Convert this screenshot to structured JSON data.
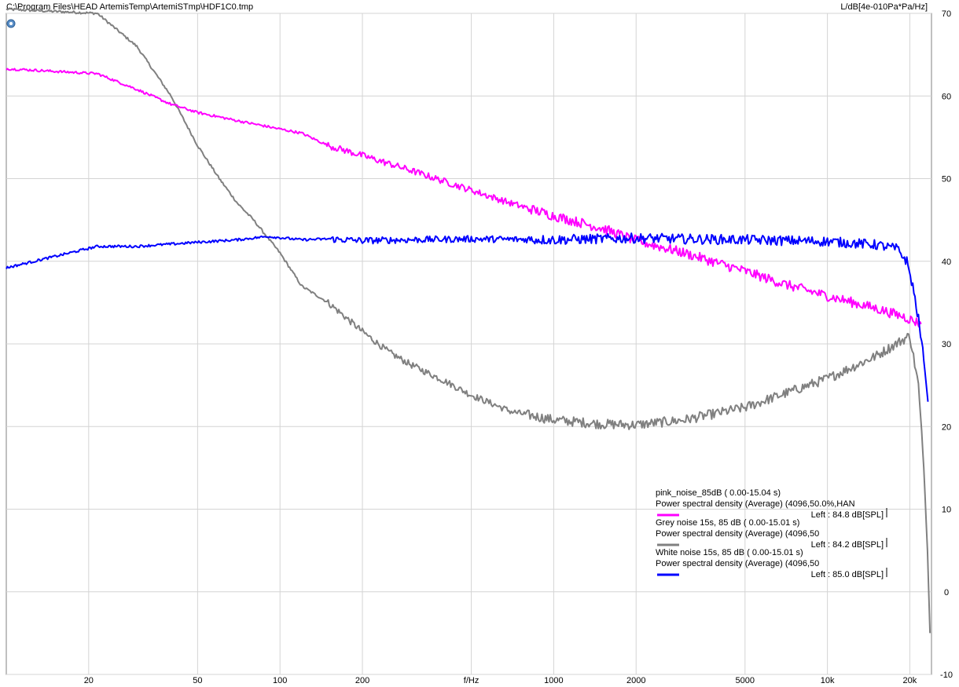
{
  "header": {
    "file_path": "C:\\Program Files\\HEAD ArtemisTemp\\ArtemiSTmp\\HDF1C0.tmp",
    "y_unit": "L/dB[4e-010Pa*Pa/Hz]"
  },
  "chart_data": {
    "type": "line",
    "title": "",
    "xlabel": "f/Hz",
    "ylabel": "L/dB[4e-010Pa*Pa/Hz]",
    "x_scale": "log",
    "xlim": [
      10,
      24000
    ],
    "ylim": [
      -10,
      70
    ],
    "grid": true,
    "legend_position": "bottom-right",
    "x_ticks": [
      {
        "value": 20,
        "label": "20"
      },
      {
        "value": 50,
        "label": "50"
      },
      {
        "value": 100,
        "label": "100"
      },
      {
        "value": 200,
        "label": "200"
      },
      {
        "value": 500,
        "label": "f/Hz"
      },
      {
        "value": 1000,
        "label": "1000"
      },
      {
        "value": 2000,
        "label": "2000"
      },
      {
        "value": 5000,
        "label": "5000"
      },
      {
        "value": 10000,
        "label": "10k"
      },
      {
        "value": 20000,
        "label": "20k"
      }
    ],
    "y_ticks": [
      {
        "value": 70,
        "label": "70"
      },
      {
        "value": 60,
        "label": "60"
      },
      {
        "value": 50,
        "label": "50"
      },
      {
        "value": 40,
        "label": "40"
      },
      {
        "value": 30,
        "label": "30"
      },
      {
        "value": 20,
        "label": "20"
      },
      {
        "value": 10,
        "label": "10"
      },
      {
        "value": 0,
        "label": "0"
      },
      {
        "value": -10,
        "label": "-10"
      }
    ],
    "series": [
      {
        "name": "pink_noise_85dB ( 0.00-15.04 s)",
        "description": "Power spectral density (Average) (4096,50.0%,HAN",
        "level": "Left : 84.8 dB[SPL]",
        "color": "#ff00ff",
        "x": [
          10,
          21.5,
          30,
          40,
          50,
          70,
          100,
          120,
          150,
          200,
          300,
          500,
          700,
          1000,
          1500,
          2000,
          3000,
          5000,
          7000,
          10000,
          15000,
          19000,
          22000
        ],
        "y": [
          63.3,
          62.7,
          60.8,
          59.0,
          58.0,
          57.0,
          56.0,
          55.5,
          54.0,
          52.8,
          51.0,
          48.6,
          47.0,
          45.5,
          44.0,
          42.5,
          41.0,
          38.8,
          37.2,
          35.8,
          34.3,
          33.3,
          32.4
        ]
      },
      {
        "name": "Grey noise 15s, 85 dB ( 0.00-15.01 s)",
        "description": "Power spectral density (Average) (4096,50",
        "level": "Left : 84.2 dB[SPL]",
        "color": "#808080",
        "x": [
          10,
          21.5,
          30,
          40,
          50,
          60,
          70,
          80,
          100,
          120,
          150,
          200,
          250,
          300,
          400,
          500,
          700,
          1000,
          1500,
          2000,
          3000,
          5000,
          7000,
          10000,
          15000,
          20000,
          21500,
          22500,
          23200,
          23700
        ],
        "y": [
          70.5,
          70.0,
          66.0,
          60.0,
          54.0,
          50.0,
          47.0,
          45.0,
          41.0,
          37.0,
          35.0,
          31.5,
          29.0,
          27.5,
          25.5,
          23.8,
          21.8,
          20.8,
          20.3,
          20.2,
          20.8,
          22.3,
          24.0,
          25.8,
          28.5,
          31.0,
          25.0,
          15.0,
          5.0,
          -5.0
        ]
      },
      {
        "name": "White noise 15s, 85 dB ( 0.00-15.01 s)",
        "description": "Power spectral density (Average) (4096,50",
        "level": "Left : 85.0 dB[SPL]",
        "color": "#0000ff",
        "x": [
          10,
          21.5,
          30,
          50,
          70,
          90,
          120,
          150,
          200,
          300,
          500,
          1000,
          2000,
          3000,
          5000,
          10000,
          15000,
          18000,
          19500,
          20500,
          21500,
          22500,
          23300
        ],
        "y": [
          39.2,
          41.8,
          41.8,
          42.3,
          42.6,
          43.0,
          42.6,
          42.7,
          42.5,
          42.6,
          42.7,
          42.6,
          42.8,
          42.7,
          42.6,
          42.4,
          42.0,
          41.5,
          40.0,
          37.0,
          33.0,
          28.0,
          23.0
        ]
      }
    ]
  }
}
